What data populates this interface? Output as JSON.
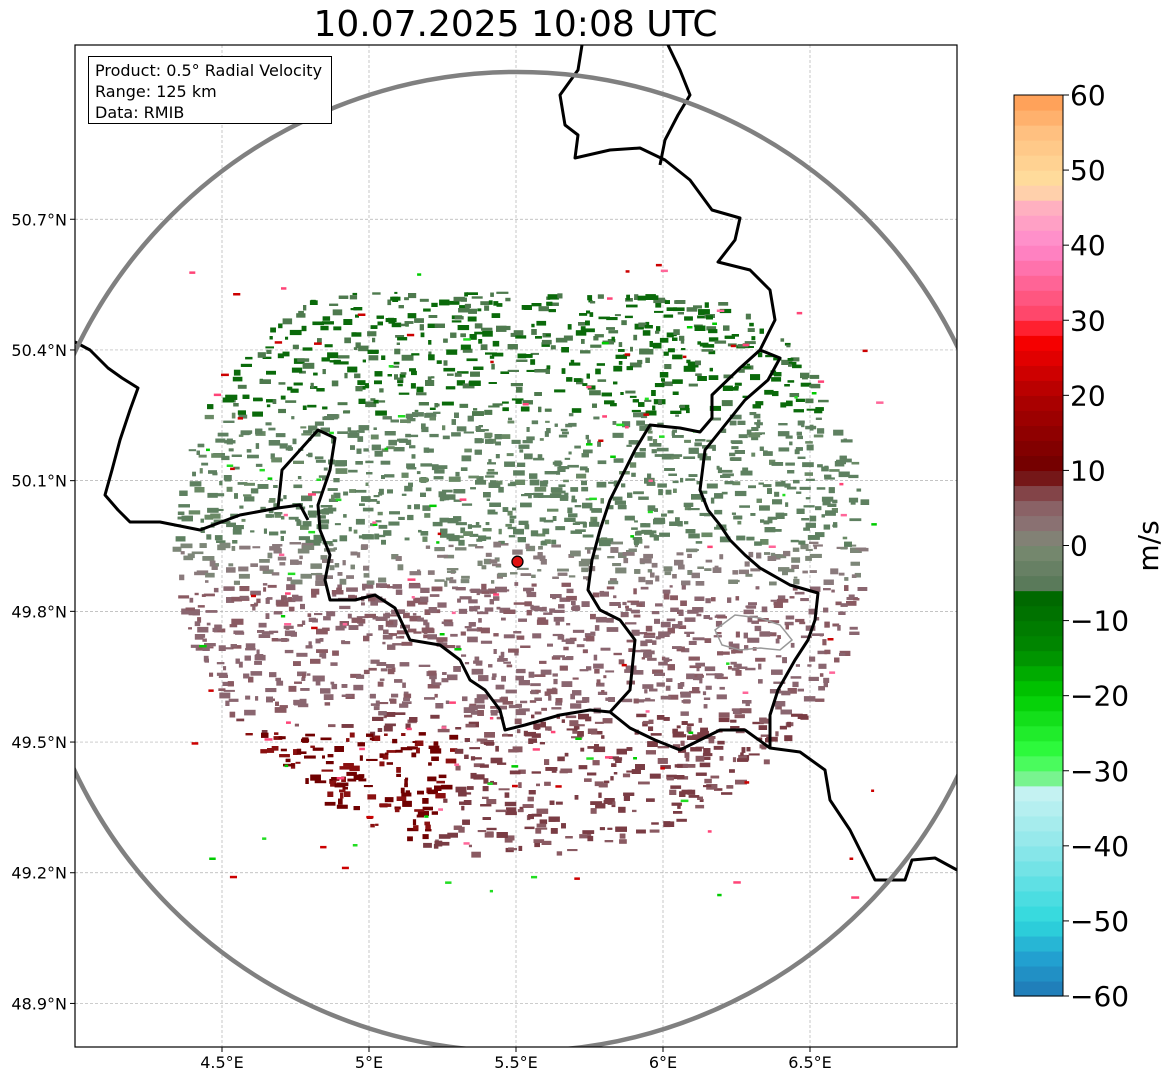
{
  "title": "10.07.2025 10:08 UTC",
  "info": {
    "product": "Product: 0.5° Radial Velocity",
    "range": "Range: 125 km",
    "source": "Data: RMIB"
  },
  "map": {
    "lon_range": [
      4.0,
      7.0
    ],
    "lat_range": [
      48.8,
      51.1
    ],
    "lon_ticks": [
      {
        "v": 4.5,
        "label": "4.5°E"
      },
      {
        "v": 5.0,
        "label": "5°E"
      },
      {
        "v": 5.5,
        "label": "5.5°E"
      },
      {
        "v": 6.0,
        "label": "6°E"
      },
      {
        "v": 6.5,
        "label": "6.5°E"
      }
    ],
    "lat_ticks": [
      {
        "v": 50.7,
        "label": "50.7°N"
      },
      {
        "v": 50.4,
        "label": "50.4°N"
      },
      {
        "v": 50.1,
        "label": "50.1°N"
      },
      {
        "v": 49.8,
        "label": "49.8°N"
      },
      {
        "v": 49.5,
        "label": "49.5°N"
      },
      {
        "v": 49.2,
        "label": "49.2°N"
      },
      {
        "v": 48.9,
        "label": "48.9°N"
      }
    ],
    "radar_site": {
      "lon": 5.505,
      "lat": 49.914
    },
    "range_km": 125,
    "grid": true
  },
  "colorbar": {
    "label": "m/s",
    "min": -60,
    "max": 60,
    "ticks": [
      {
        "v": 60,
        "label": "60"
      },
      {
        "v": 50,
        "label": "50"
      },
      {
        "v": 40,
        "label": "40"
      },
      {
        "v": 30,
        "label": "30"
      },
      {
        "v": 20,
        "label": "20"
      },
      {
        "v": 10,
        "label": "10"
      },
      {
        "v": 0,
        "label": "0"
      },
      {
        "v": -10,
        "label": "−10"
      },
      {
        "v": -20,
        "label": "−20"
      },
      {
        "v": -30,
        "label": "−30"
      },
      {
        "v": -40,
        "label": "−40"
      },
      {
        "v": -50,
        "label": "−50"
      },
      {
        "v": -60,
        "label": "−60"
      }
    ],
    "stops": [
      {
        "v": -60,
        "color": "#1f77b4"
      },
      {
        "v": -55,
        "color": "#22a0d0"
      },
      {
        "v": -50,
        "color": "#2ed8dd"
      },
      {
        "v": -40,
        "color": "#90e8ea"
      },
      {
        "v": -33,
        "color": "#c4f2f2"
      },
      {
        "v": -32,
        "color": "#8ff0a8"
      },
      {
        "v": -28,
        "color": "#33ff44"
      },
      {
        "v": -20,
        "color": "#00cc00"
      },
      {
        "v": -14,
        "color": "#008a00"
      },
      {
        "v": -6,
        "color": "#006400"
      },
      {
        "v": -5,
        "color": "#5a7a5a"
      },
      {
        "v": 0,
        "color": "#7a8a72"
      },
      {
        "v": 2,
        "color": "#8a7878"
      },
      {
        "v": 6,
        "color": "#8a5a60"
      },
      {
        "v": 10,
        "color": "#6e0000"
      },
      {
        "v": 20,
        "color": "#b00000"
      },
      {
        "v": 28,
        "color": "#ff0000"
      },
      {
        "v": 30,
        "color": "#ff4060"
      },
      {
        "v": 40,
        "color": "#ff88cc"
      },
      {
        "v": 45,
        "color": "#ffb0c0"
      },
      {
        "v": 48,
        "color": "#ffe0a0"
      },
      {
        "v": 55,
        "color": "#ffc080"
      },
      {
        "v": 60,
        "color": "#ff9a50"
      }
    ]
  }
}
